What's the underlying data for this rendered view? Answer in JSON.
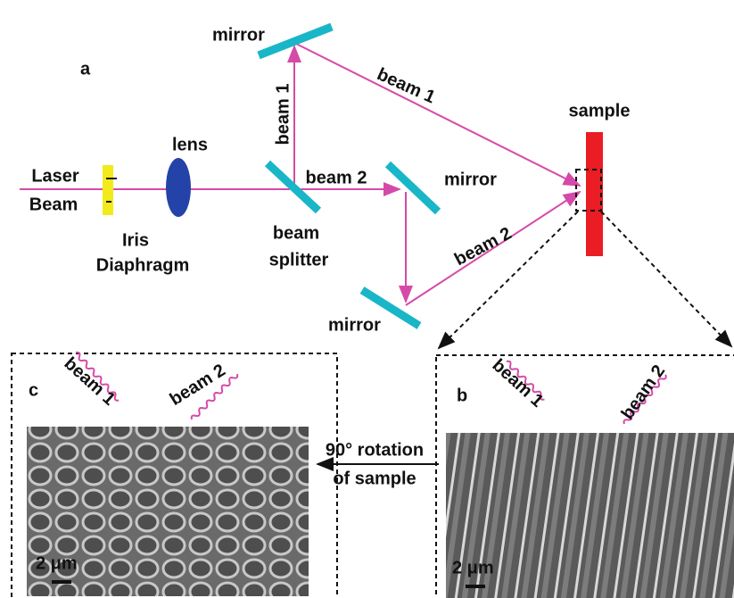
{
  "panel_a": {
    "label": "a",
    "laser": [
      "Laser",
      "Beam"
    ],
    "iris": [
      "Iris",
      "Diaphragm"
    ],
    "lens": "lens",
    "beam_splitter": [
      "beam",
      "splitter"
    ],
    "mirrors": [
      "mirror",
      "mirror",
      "mirror"
    ],
    "beams": [
      "beam 1",
      "beam 1",
      "beam 2",
      "beam 2"
    ],
    "sample": "sample"
  },
  "panel_b": {
    "label": "b",
    "beams": [
      "beam 1",
      "beam 2"
    ],
    "scale_bar": "2 μm"
  },
  "panel_c": {
    "label": "c",
    "beams": [
      "beam 1",
      "beam 2"
    ],
    "scale_bar": "2 μm"
  },
  "rotation": [
    "90° rotation",
    "of sample"
  ]
}
